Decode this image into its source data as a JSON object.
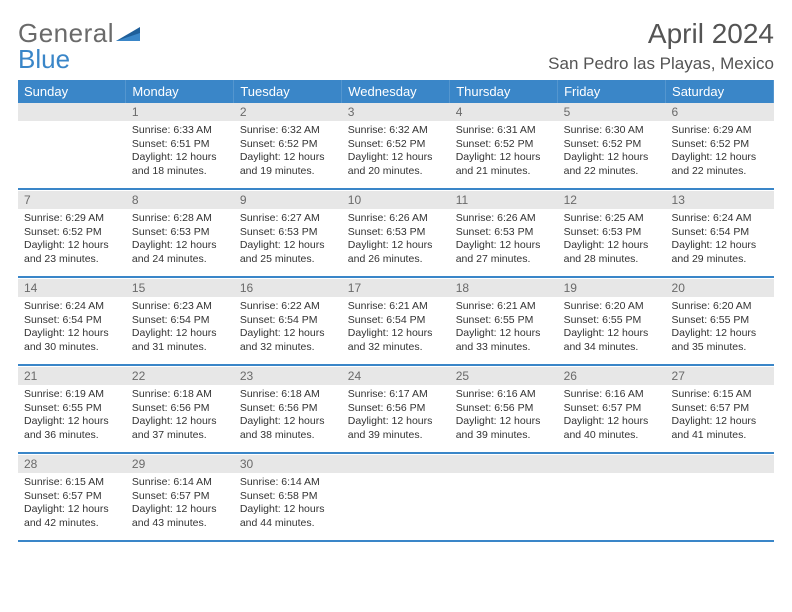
{
  "logo": {
    "text1": "General",
    "text2": "Blue"
  },
  "title": "April 2024",
  "location": "San Pedro las Playas, Mexico",
  "colors": {
    "accent": "#3a86c8",
    "header_bg": "#3a86c8",
    "daynum_bg": "#e7e7e7",
    "text": "#333333",
    "title_text": "#545454"
  },
  "weekdays": [
    "Sunday",
    "Monday",
    "Tuesday",
    "Wednesday",
    "Thursday",
    "Friday",
    "Saturday"
  ],
  "weeks": [
    [
      null,
      {
        "n": "1",
        "sr": "Sunrise: 6:33 AM",
        "ss": "Sunset: 6:51 PM",
        "dl1": "Daylight: 12 hours",
        "dl2": "and 18 minutes."
      },
      {
        "n": "2",
        "sr": "Sunrise: 6:32 AM",
        "ss": "Sunset: 6:52 PM",
        "dl1": "Daylight: 12 hours",
        "dl2": "and 19 minutes."
      },
      {
        "n": "3",
        "sr": "Sunrise: 6:32 AM",
        "ss": "Sunset: 6:52 PM",
        "dl1": "Daylight: 12 hours",
        "dl2": "and 20 minutes."
      },
      {
        "n": "4",
        "sr": "Sunrise: 6:31 AM",
        "ss": "Sunset: 6:52 PM",
        "dl1": "Daylight: 12 hours",
        "dl2": "and 21 minutes."
      },
      {
        "n": "5",
        "sr": "Sunrise: 6:30 AM",
        "ss": "Sunset: 6:52 PM",
        "dl1": "Daylight: 12 hours",
        "dl2": "and 22 minutes."
      },
      {
        "n": "6",
        "sr": "Sunrise: 6:29 AM",
        "ss": "Sunset: 6:52 PM",
        "dl1": "Daylight: 12 hours",
        "dl2": "and 22 minutes."
      }
    ],
    [
      {
        "n": "7",
        "sr": "Sunrise: 6:29 AM",
        "ss": "Sunset: 6:52 PM",
        "dl1": "Daylight: 12 hours",
        "dl2": "and 23 minutes."
      },
      {
        "n": "8",
        "sr": "Sunrise: 6:28 AM",
        "ss": "Sunset: 6:53 PM",
        "dl1": "Daylight: 12 hours",
        "dl2": "and 24 minutes."
      },
      {
        "n": "9",
        "sr": "Sunrise: 6:27 AM",
        "ss": "Sunset: 6:53 PM",
        "dl1": "Daylight: 12 hours",
        "dl2": "and 25 minutes."
      },
      {
        "n": "10",
        "sr": "Sunrise: 6:26 AM",
        "ss": "Sunset: 6:53 PM",
        "dl1": "Daylight: 12 hours",
        "dl2": "and 26 minutes."
      },
      {
        "n": "11",
        "sr": "Sunrise: 6:26 AM",
        "ss": "Sunset: 6:53 PM",
        "dl1": "Daylight: 12 hours",
        "dl2": "and 27 minutes."
      },
      {
        "n": "12",
        "sr": "Sunrise: 6:25 AM",
        "ss": "Sunset: 6:53 PM",
        "dl1": "Daylight: 12 hours",
        "dl2": "and 28 minutes."
      },
      {
        "n": "13",
        "sr": "Sunrise: 6:24 AM",
        "ss": "Sunset: 6:54 PM",
        "dl1": "Daylight: 12 hours",
        "dl2": "and 29 minutes."
      }
    ],
    [
      {
        "n": "14",
        "sr": "Sunrise: 6:24 AM",
        "ss": "Sunset: 6:54 PM",
        "dl1": "Daylight: 12 hours",
        "dl2": "and 30 minutes."
      },
      {
        "n": "15",
        "sr": "Sunrise: 6:23 AM",
        "ss": "Sunset: 6:54 PM",
        "dl1": "Daylight: 12 hours",
        "dl2": "and 31 minutes."
      },
      {
        "n": "16",
        "sr": "Sunrise: 6:22 AM",
        "ss": "Sunset: 6:54 PM",
        "dl1": "Daylight: 12 hours",
        "dl2": "and 32 minutes."
      },
      {
        "n": "17",
        "sr": "Sunrise: 6:21 AM",
        "ss": "Sunset: 6:54 PM",
        "dl1": "Daylight: 12 hours",
        "dl2": "and 32 minutes."
      },
      {
        "n": "18",
        "sr": "Sunrise: 6:21 AM",
        "ss": "Sunset: 6:55 PM",
        "dl1": "Daylight: 12 hours",
        "dl2": "and 33 minutes."
      },
      {
        "n": "19",
        "sr": "Sunrise: 6:20 AM",
        "ss": "Sunset: 6:55 PM",
        "dl1": "Daylight: 12 hours",
        "dl2": "and 34 minutes."
      },
      {
        "n": "20",
        "sr": "Sunrise: 6:20 AM",
        "ss": "Sunset: 6:55 PM",
        "dl1": "Daylight: 12 hours",
        "dl2": "and 35 minutes."
      }
    ],
    [
      {
        "n": "21",
        "sr": "Sunrise: 6:19 AM",
        "ss": "Sunset: 6:55 PM",
        "dl1": "Daylight: 12 hours",
        "dl2": "and 36 minutes."
      },
      {
        "n": "22",
        "sr": "Sunrise: 6:18 AM",
        "ss": "Sunset: 6:56 PM",
        "dl1": "Daylight: 12 hours",
        "dl2": "and 37 minutes."
      },
      {
        "n": "23",
        "sr": "Sunrise: 6:18 AM",
        "ss": "Sunset: 6:56 PM",
        "dl1": "Daylight: 12 hours",
        "dl2": "and 38 minutes."
      },
      {
        "n": "24",
        "sr": "Sunrise: 6:17 AM",
        "ss": "Sunset: 6:56 PM",
        "dl1": "Daylight: 12 hours",
        "dl2": "and 39 minutes."
      },
      {
        "n": "25",
        "sr": "Sunrise: 6:16 AM",
        "ss": "Sunset: 6:56 PM",
        "dl1": "Daylight: 12 hours",
        "dl2": "and 39 minutes."
      },
      {
        "n": "26",
        "sr": "Sunrise: 6:16 AM",
        "ss": "Sunset: 6:57 PM",
        "dl1": "Daylight: 12 hours",
        "dl2": "and 40 minutes."
      },
      {
        "n": "27",
        "sr": "Sunrise: 6:15 AM",
        "ss": "Sunset: 6:57 PM",
        "dl1": "Daylight: 12 hours",
        "dl2": "and 41 minutes."
      }
    ],
    [
      {
        "n": "28",
        "sr": "Sunrise: 6:15 AM",
        "ss": "Sunset: 6:57 PM",
        "dl1": "Daylight: 12 hours",
        "dl2": "and 42 minutes."
      },
      {
        "n": "29",
        "sr": "Sunrise: 6:14 AM",
        "ss": "Sunset: 6:57 PM",
        "dl1": "Daylight: 12 hours",
        "dl2": "and 43 minutes."
      },
      {
        "n": "30",
        "sr": "Sunrise: 6:14 AM",
        "ss": "Sunset: 6:58 PM",
        "dl1": "Daylight: 12 hours",
        "dl2": "and 44 minutes."
      },
      null,
      null,
      null,
      null
    ]
  ]
}
